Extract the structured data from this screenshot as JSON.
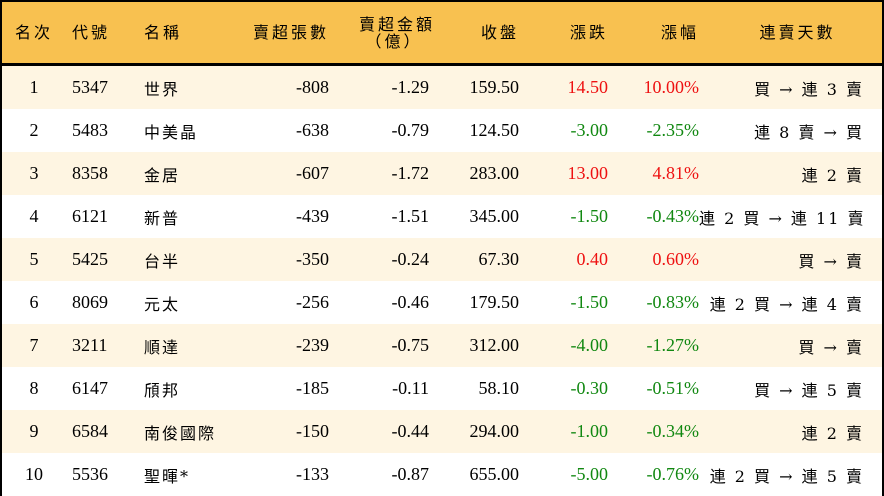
{
  "header": {
    "rank": "名次",
    "code": "代號",
    "name": "名稱",
    "net_sell_shares": "賣超張數",
    "net_sell_amount_line1": "賣超金額",
    "net_sell_amount_line2": "（億）",
    "close": "收盤",
    "change": "漲跌",
    "change_pct": "漲幅",
    "streak": "連賣天數"
  },
  "colors": {
    "header_bg": "#f8c150",
    "odd_row_bg": "#fef5e2",
    "even_row_bg": "#ffffff",
    "up": "#ee1111",
    "down": "#118811"
  },
  "rows": [
    {
      "rank": "1",
      "code": "5347",
      "name": "世界",
      "shares": "-808",
      "amount": "-1.29",
      "close": "159.50",
      "change": "14.50",
      "pct": "10.00%",
      "dir": "up",
      "streak": "買 → 連 3 賣"
    },
    {
      "rank": "2",
      "code": "5483",
      "name": "中美晶",
      "shares": "-638",
      "amount": "-0.79",
      "close": "124.50",
      "change": "-3.00",
      "pct": "-2.35%",
      "dir": "down",
      "streak": "連 8 賣 → 買"
    },
    {
      "rank": "3",
      "code": "8358",
      "name": "金居",
      "shares": "-607",
      "amount": "-1.72",
      "close": "283.00",
      "change": "13.00",
      "pct": "4.81%",
      "dir": "up",
      "streak": "連 2 賣"
    },
    {
      "rank": "4",
      "code": "6121",
      "name": "新普",
      "shares": "-439",
      "amount": "-1.51",
      "close": "345.00",
      "change": "-1.50",
      "pct": "-0.43%",
      "dir": "down",
      "streak": "連 2 買 → 連 11 賣"
    },
    {
      "rank": "5",
      "code": "5425",
      "name": "台半",
      "shares": "-350",
      "amount": "-0.24",
      "close": "67.30",
      "change": "0.40",
      "pct": "0.60%",
      "dir": "up",
      "streak": "買 → 賣"
    },
    {
      "rank": "6",
      "code": "8069",
      "name": "元太",
      "shares": "-256",
      "amount": "-0.46",
      "close": "179.50",
      "change": "-1.50",
      "pct": "-0.83%",
      "dir": "down",
      "streak": "連 2 買 → 連 4 賣"
    },
    {
      "rank": "7",
      "code": "3211",
      "name": "順達",
      "shares": "-239",
      "amount": "-0.75",
      "close": "312.00",
      "change": "-4.00",
      "pct": "-1.27%",
      "dir": "down",
      "streak": "買 → 賣"
    },
    {
      "rank": "8",
      "code": "6147",
      "name": "頎邦",
      "shares": "-185",
      "amount": "-0.11",
      "close": "58.10",
      "change": "-0.30",
      "pct": "-0.51%",
      "dir": "down",
      "streak": "買 → 連 5 賣"
    },
    {
      "rank": "9",
      "code": "6584",
      "name": "南俊國際",
      "shares": "-150",
      "amount": "-0.44",
      "close": "294.00",
      "change": "-1.00",
      "pct": "-0.34%",
      "dir": "down",
      "streak": "連 2 賣"
    },
    {
      "rank": "10",
      "code": "5536",
      "name": "聖暉*",
      "shares": "-133",
      "amount": "-0.87",
      "close": "655.00",
      "change": "-5.00",
      "pct": "-0.76%",
      "dir": "down",
      "streak": "連 2 買 → 連 5 賣"
    }
  ]
}
